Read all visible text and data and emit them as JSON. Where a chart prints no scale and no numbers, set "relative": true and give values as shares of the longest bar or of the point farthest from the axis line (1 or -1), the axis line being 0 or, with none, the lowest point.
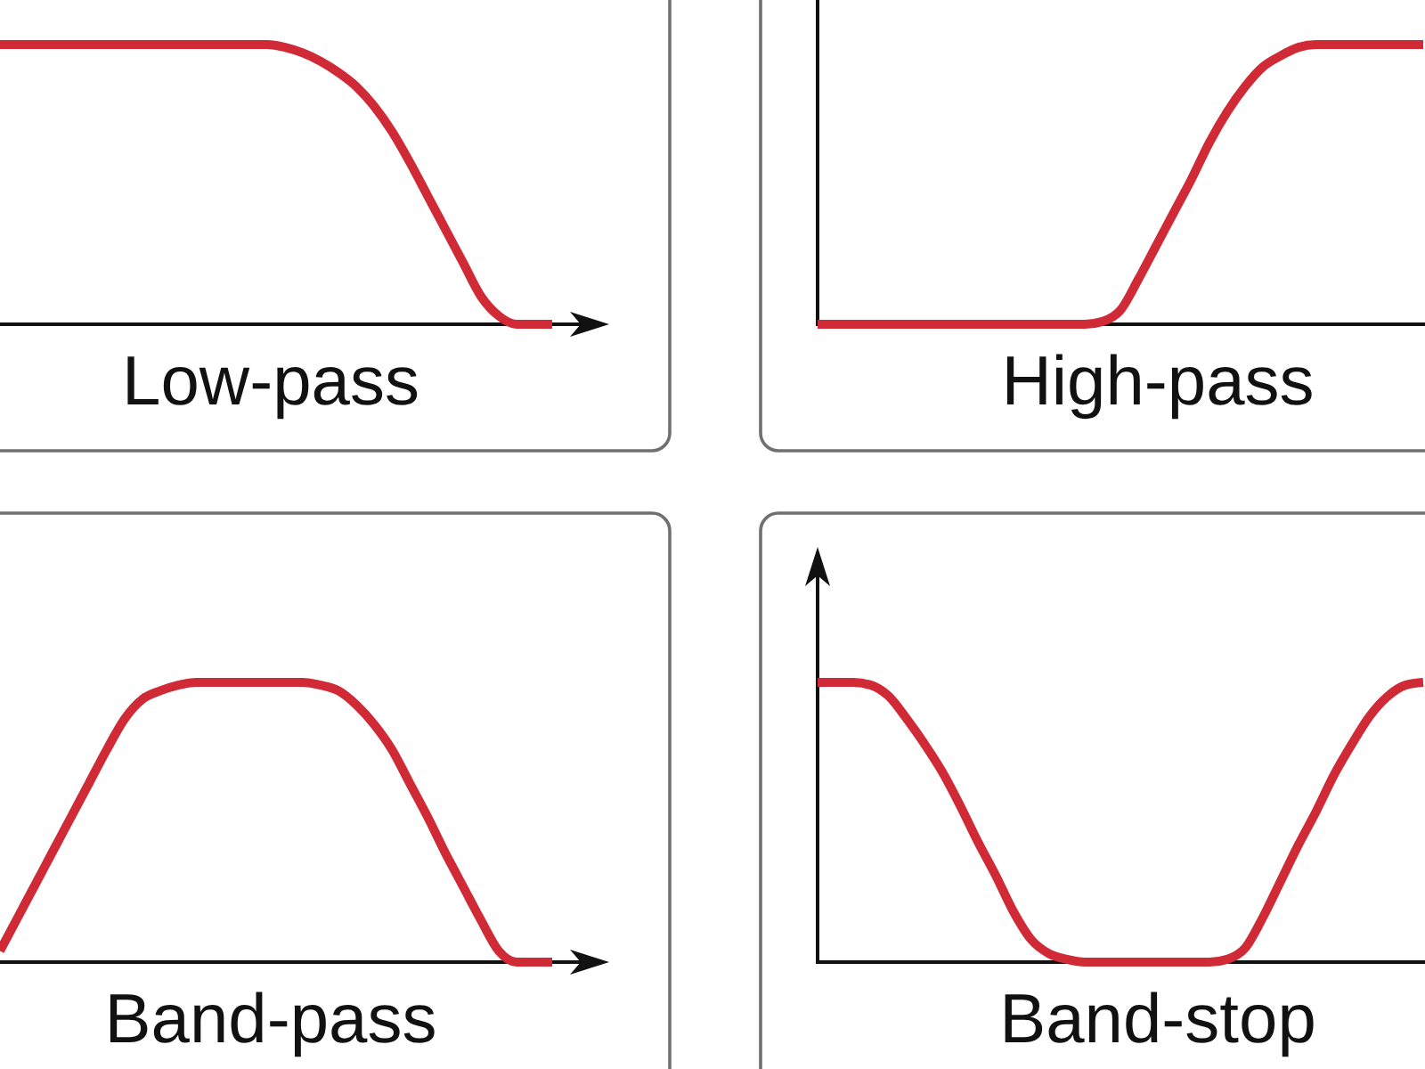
{
  "chart_data": [
    {
      "type": "line",
      "xlabel": "Low-pass",
      "relative": true,
      "categories": [
        null,
        null,
        null,
        null,
        null,
        null,
        null,
        null,
        null,
        null,
        null,
        null,
        null,
        null,
        null,
        null,
        null,
        null,
        null,
        null,
        null,
        null,
        null,
        null,
        null,
        null,
        null,
        null,
        null,
        null,
        null,
        null
      ],
      "series": [
        {
          "color": "#cf2a35",
          "values": [
            1,
            1,
            1,
            1,
            1,
            1,
            1,
            1,
            1,
            1,
            1,
            1,
            1,
            1,
            1,
            1,
            0.99,
            0.97,
            0.94,
            0.9,
            0.85,
            0.78,
            0.69,
            0.58,
            0.46,
            0.34,
            0.22,
            0.1,
            0.03,
            0,
            0,
            0
          ]
        }
      ]
    },
    {
      "type": "line",
      "xlabel": "High-pass",
      "relative": true,
      "categories": [
        null,
        null,
        null,
        null,
        null,
        null,
        null,
        null,
        null,
        null,
        null,
        null,
        null,
        null,
        null,
        null,
        null,
        null,
        null,
        null,
        null,
        null,
        null,
        null,
        null,
        null,
        null,
        null,
        null,
        null,
        null,
        null,
        null,
        null,
        null
      ],
      "series": [
        {
          "color": "#cf2a35",
          "values": [
            0,
            0,
            0,
            0,
            0,
            0,
            0,
            0,
            0,
            0,
            0,
            0,
            0,
            0,
            0,
            0,
            0.01,
            0.05,
            0.16,
            0.28,
            0.4,
            0.52,
            0.65,
            0.76,
            0.85,
            0.92,
            0.96,
            0.99,
            1,
            1,
            1,
            1,
            1,
            1,
            1
          ]
        }
      ]
    },
    {
      "type": "line",
      "xlabel": "Band-pass",
      "relative": true,
      "categories": [
        null,
        null,
        null,
        null,
        null,
        null,
        null,
        null,
        null,
        null,
        null,
        null,
        null,
        null,
        null,
        null,
        null,
        null,
        null,
        null,
        null,
        null,
        null,
        null,
        null,
        null,
        null,
        null,
        null,
        null,
        null,
        null
      ],
      "series": [
        {
          "color": "#cf2a35",
          "values": [
            0.04,
            0.16,
            0.28,
            0.4,
            0.52,
            0.64,
            0.76,
            0.87,
            0.94,
            0.97,
            0.99,
            1,
            1,
            1,
            1,
            1,
            1,
            1,
            0.99,
            0.97,
            0.92,
            0.85,
            0.76,
            0.64,
            0.52,
            0.39,
            0.27,
            0.15,
            0.04,
            0,
            0,
            0
          ]
        }
      ]
    },
    {
      "type": "line",
      "xlabel": "Band-stop",
      "relative": true,
      "categories": [
        null,
        null,
        null,
        null,
        null,
        null,
        null,
        null,
        null,
        null,
        null,
        null,
        null,
        null,
        null,
        null,
        null,
        null,
        null,
        null,
        null,
        null,
        null,
        null,
        null,
        null,
        null,
        null,
        null,
        null,
        null,
        null,
        null,
        null,
        null
      ],
      "series": [
        {
          "color": "#cf2a35",
          "values": [
            1,
            1,
            1,
            0.99,
            0.95,
            0.87,
            0.78,
            0.68,
            0.56,
            0.43,
            0.31,
            0.18,
            0.08,
            0.03,
            0.01,
            0,
            0,
            0,
            0,
            0,
            0,
            0,
            0,
            0.01,
            0.05,
            0.16,
            0.29,
            0.42,
            0.54,
            0.67,
            0.78,
            0.88,
            0.95,
            0.99,
            1
          ]
        }
      ]
    }
  ]
}
